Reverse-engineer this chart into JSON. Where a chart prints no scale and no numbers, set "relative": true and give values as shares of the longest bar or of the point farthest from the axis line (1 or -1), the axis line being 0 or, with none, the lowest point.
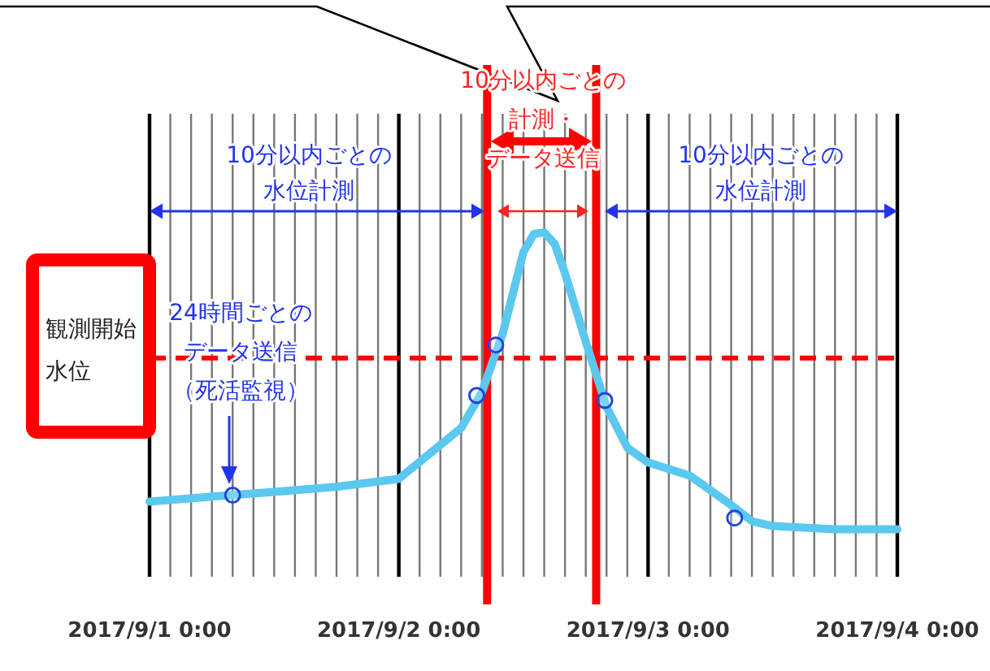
{
  "chart_data": {
    "type": "line",
    "x": [
      "2017-09-01T00:00",
      "2017-09-01T06:00",
      "2017-09-01T12:00",
      "2017-09-01T18:00",
      "2017-09-02T00:00",
      "2017-09-02T06:00",
      "2017-09-02T08:00",
      "2017-09-02T10:00",
      "2017-09-02T12:00",
      "2017-09-02T13:00",
      "2017-09-02T14:00",
      "2017-09-02T15:00",
      "2017-09-02T16:00",
      "2017-09-02T18:00",
      "2017-09-02T20:00",
      "2017-09-02T22:00",
      "2017-09-03T00:00",
      "2017-09-03T04:00",
      "2017-09-03T08:00",
      "2017-09-03T10:00",
      "2017-09-03T12:00",
      "2017-09-03T18:00",
      "2017-09-04T00:00"
    ],
    "series": [
      {
        "color": "#5bc8ef",
        "values": [
          0.093,
          0.11,
          0.126,
          0.143,
          0.17,
          0.341,
          0.462,
          0.659,
          0.934,
          0.995,
          1,
          0.962,
          0.863,
          0.632,
          0.412,
          0.275,
          0.225,
          0.181,
          0.082,
          0.027,
          0.011,
          0,
          0
        ]
      },
      {
        "type": "scatter",
        "color": "#2244dd",
        "x": [
          "2017-09-01T08:00",
          "2017-09-02T07:30",
          "2017-09-02T09:20",
          "2017-09-02T19:50",
          "2017-09-03T08:20"
        ],
        "values": [
          0.115,
          0.451,
          0.621,
          0.434,
          0.038
        ]
      }
    ],
    "relative": true,
    "xlim": [
      "2017-09-01T00:00",
      "2017-09-04T00:00"
    ],
    "xticks": [
      {
        "value": "2017-09-01T00:00",
        "label": "2017/9/1 0:00"
      },
      {
        "value": "2017-09-01T02:00",
        "label": null
      },
      {
        "value": "2017-09-01T04:00",
        "label": null
      },
      {
        "value": "2017-09-01T06:00",
        "label": null
      },
      {
        "value": "2017-09-01T08:00",
        "label": null
      },
      {
        "value": "2017-09-01T10:00",
        "label": null
      },
      {
        "value": "2017-09-01T12:00",
        "label": null
      },
      {
        "value": "2017-09-01T14:00",
        "label": null
      },
      {
        "value": "2017-09-01T16:00",
        "label": null
      },
      {
        "value": "2017-09-01T18:00",
        "label": null
      },
      {
        "value": "2017-09-01T20:00",
        "label": null
      },
      {
        "value": "2017-09-01T22:00",
        "label": null
      },
      {
        "value": "2017-09-02T00:00",
        "label": "2017/9/2 0:00"
      },
      {
        "value": "2017-09-02T02:00",
        "label": null
      },
      {
        "value": "2017-09-02T04:00",
        "label": null
      },
      {
        "value": "2017-09-02T06:00",
        "label": null
      },
      {
        "value": "2017-09-02T08:00",
        "label": null
      },
      {
        "value": "2017-09-02T10:00",
        "label": null
      },
      {
        "value": "2017-09-02T12:00",
        "label": null
      },
      {
        "value": "2017-09-02T14:00",
        "label": null
      },
      {
        "value": "2017-09-02T16:00",
        "label": null
      },
      {
        "value": "2017-09-02T18:00",
        "label": null
      },
      {
        "value": "2017-09-02T20:00",
        "label": null
      },
      {
        "value": "2017-09-02T22:00",
        "label": null
      },
      {
        "value": "2017-09-03T00:00",
        "label": "2017/9/3 0:00"
      },
      {
        "value": "2017-09-03T02:00",
        "label": null
      },
      {
        "value": "2017-09-03T04:00",
        "label": null
      },
      {
        "value": "2017-09-03T06:00",
        "label": null
      },
      {
        "value": "2017-09-03T08:00",
        "label": null
      },
      {
        "value": "2017-09-03T10:00",
        "label": null
      },
      {
        "value": "2017-09-03T12:00",
        "label": null
      },
      {
        "value": "2017-09-03T14:00",
        "label": null
      },
      {
        "value": "2017-09-03T16:00",
        "label": null
      },
      {
        "value": "2017-09-03T18:00",
        "label": null
      },
      {
        "value": "2017-09-03T20:00",
        "label": null
      },
      {
        "value": "2017-09-03T22:00",
        "label": null
      },
      {
        "value": "2017-09-04T00:00",
        "label": "2017/9/4 0:00"
      }
    ],
    "grid": "x",
    "ref_lines": [
      {
        "axis": "y",
        "value": 0.577,
        "label": "観測開始水位",
        "color": "#ff0000",
        "line_style": "dashed"
      },
      {
        "axis": "x",
        "value": "2017-09-02T08:30",
        "color": "#ff0000"
      },
      {
        "axis": "x",
        "value": "2017-09-02T19:00",
        "color": "#ff0000"
      }
    ],
    "annotations": [
      "10分以内ごとの水位計測",
      "24時間ごとのデータ送信（死活監視）",
      "10分以内ごとの計測・データ送信",
      "10分以内ごとの水位計測"
    ]
  }
}
